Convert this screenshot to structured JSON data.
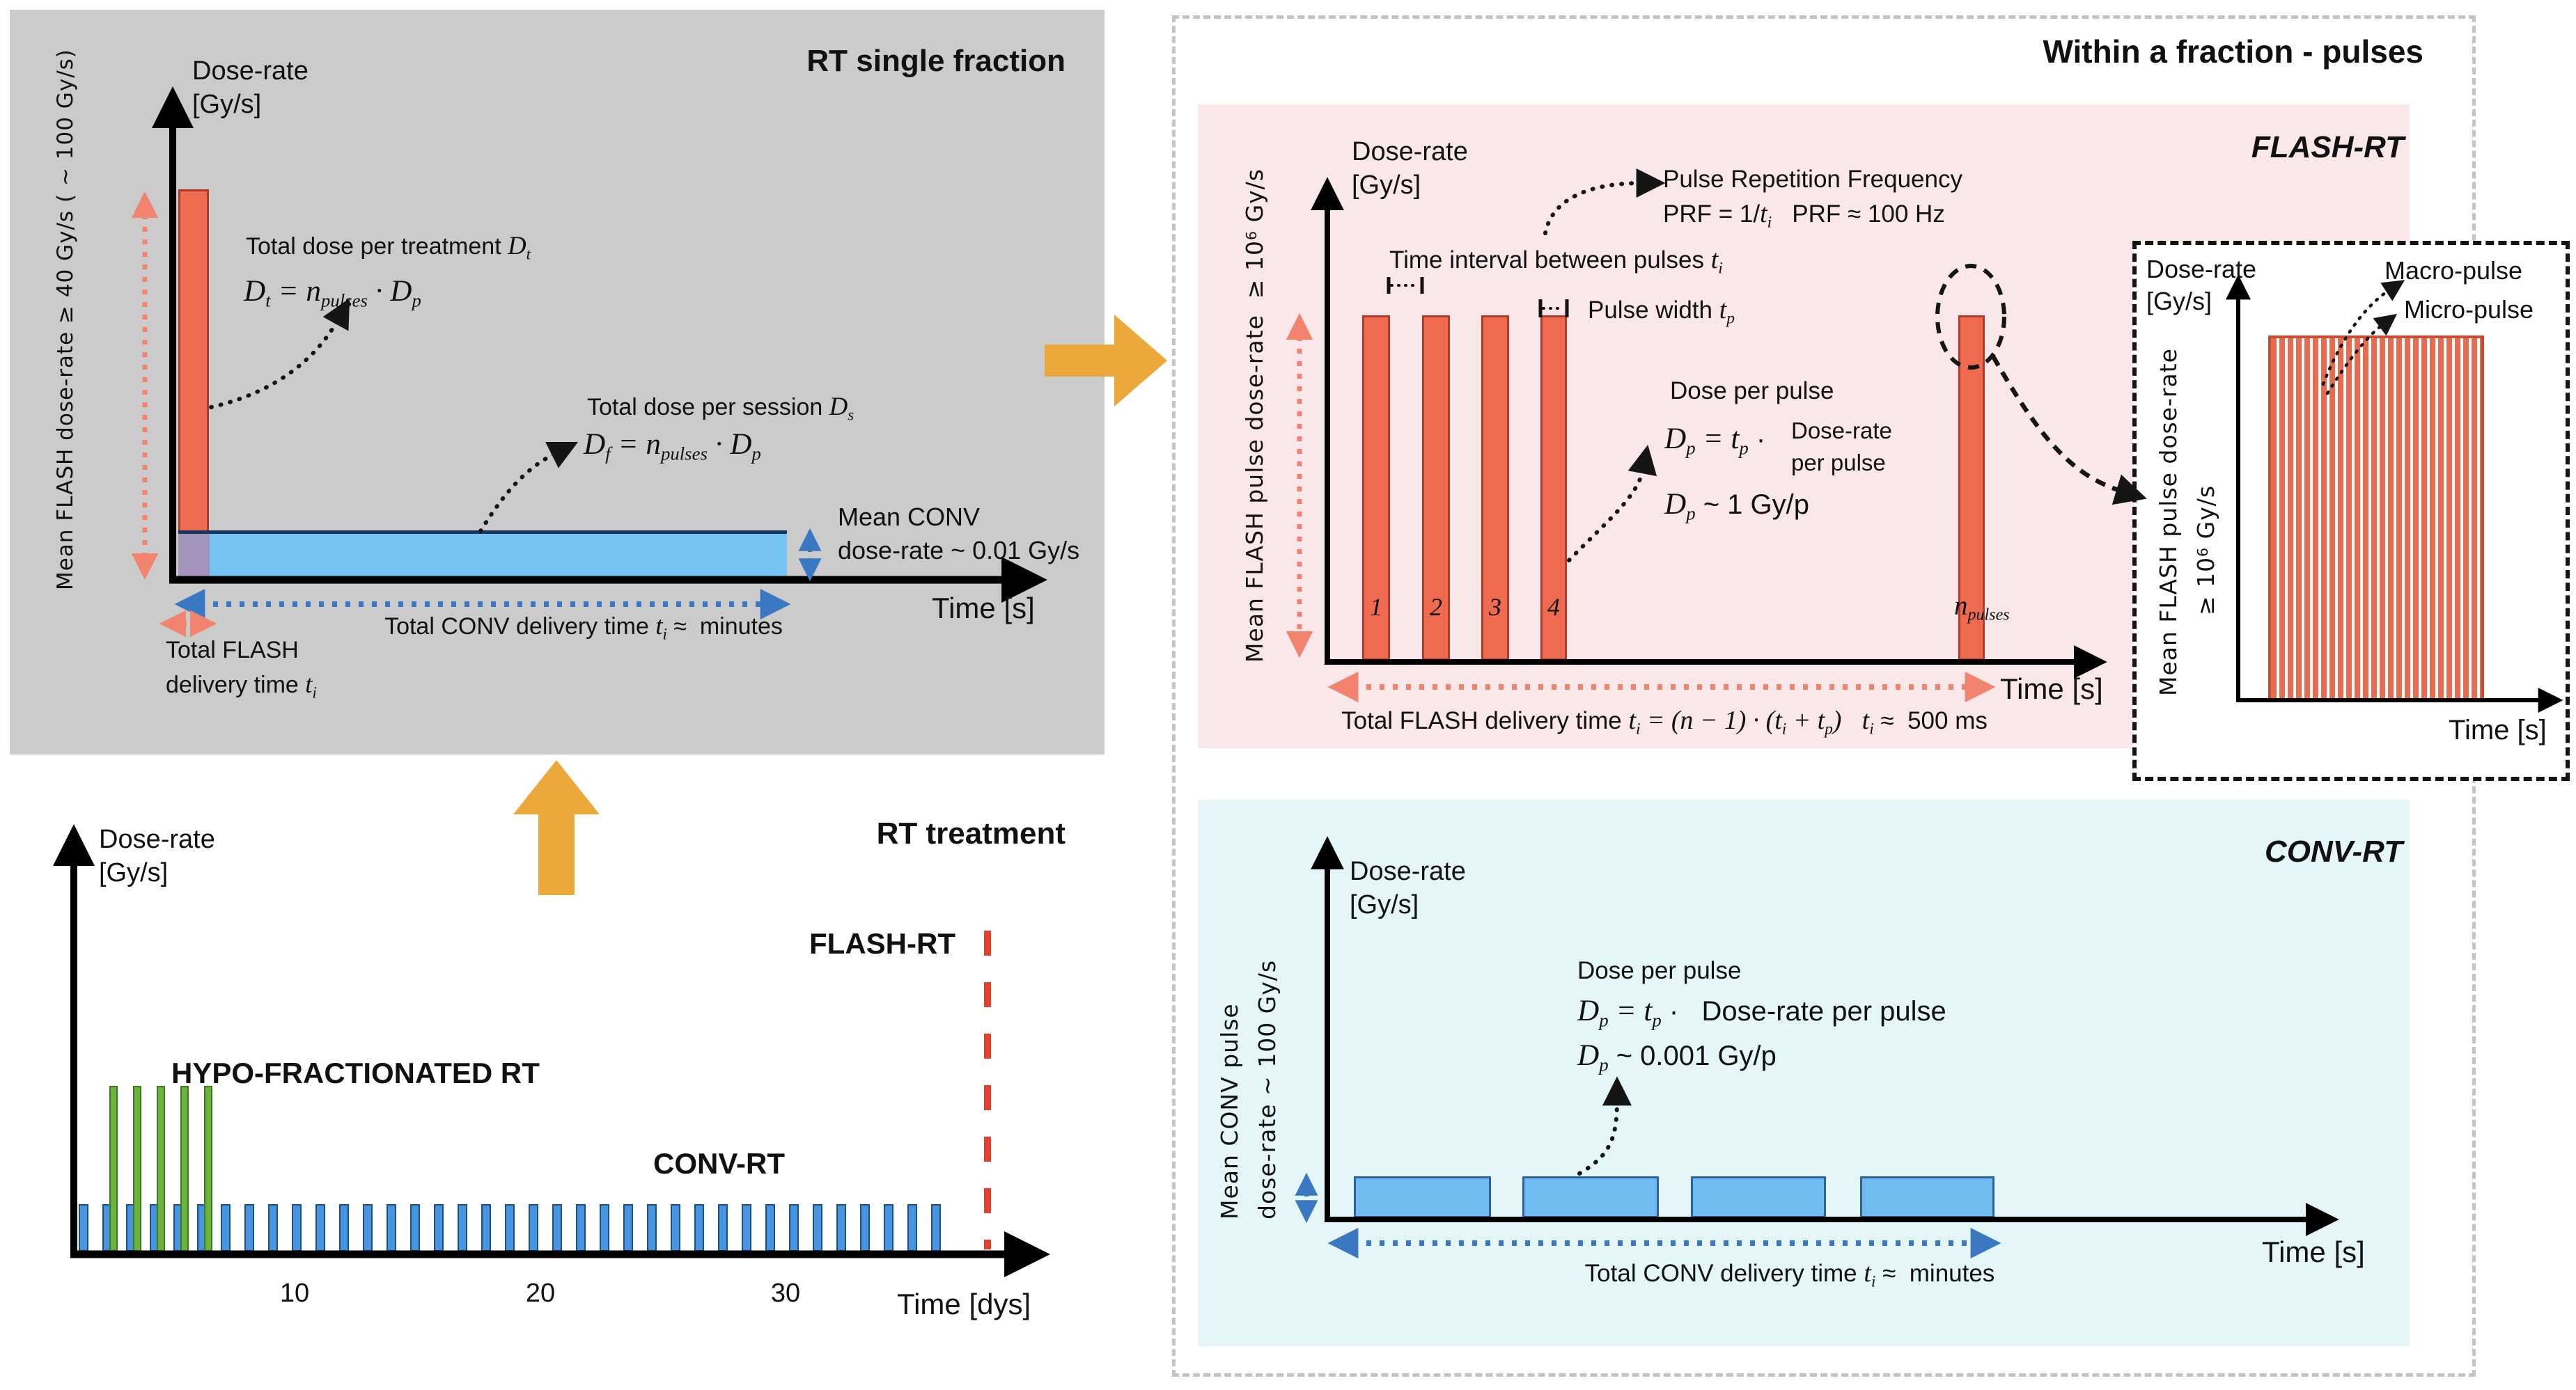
{
  "colors": {
    "panel_gray": "#CBCBCB",
    "panel_pink": "#FAE7EA",
    "panel_cyan": "#E4F6F7",
    "flash_red_fill": "#EE6B50",
    "flash_red_border": "#B23B28",
    "conv_blue_fill": "#70BCF1",
    "conv_blue_border": "#2A62A0",
    "treatment_blue": "#4795DE",
    "hypo_green": "#6CB33E",
    "orange_arrow": "#EBA93C",
    "salmon_arrow": "#F2836F",
    "blue_arrow": "#3B78C2",
    "flash_dashed_red": "#E5402E",
    "navy_border": "#17375E",
    "overlap_purple": "#A494BD"
  },
  "schematic": {
    "conv_daily_bar_count": 37,
    "hypo_bar_count": 5,
    "flash_pulse_count": 4,
    "conv_pulse_count": 4
  },
  "single_fraction": {
    "title": "RT single fraction",
    "y_label": "Dose-rate",
    "y_unit": "[Gy/s]",
    "x_label": "Time [s]",
    "y_annotation": "Mean FLASH dose-rate ≥ 40 Gy/s ( ~ 100 Gy/s)",
    "treatment_title": "Total dose per treatment {{D_{t}}}",
    "treatment_eq": "{{D_{t} = n_{pulses} · D_{p}}}",
    "session_title": "Total dose per session {{D_{s}}}",
    "session_eq": "{{D_{f} = n_{pulses} · D_{p}}}",
    "conv_rate_1": "Mean CONV",
    "conv_rate_2": "dose-rate ~ 0.01 Gy/s",
    "conv_time": "Total CONV delivery time {{t_{i}}} ≈  minutes",
    "flash_time_1": "Total FLASH",
    "flash_time_2": "delivery time {{t_{i}}}"
  },
  "rt_treatment": {
    "title": "RT treatment",
    "y_label": "Dose-rate",
    "y_unit": "[Gy/s]",
    "x_label": "Time [dys]",
    "flash_label": "FLASH-RT",
    "hypo_label": "HYPO-FRACTIONATED RT",
    "conv_label": "CONV-RT",
    "ticks": [
      "10",
      "20",
      "30"
    ]
  },
  "within_fraction": {
    "title": "Within a fraction - pulses",
    "flash": {
      "panel_label": "FLASH-RT",
      "y_label": "Dose-rate",
      "y_unit": "[Gy/s]",
      "x_label": "Time [s]",
      "y_annotation": "Mean FLASH pulse dose-rate  ≥ 10^{6} Gy/s",
      "prf_title": "Pulse Repetition Frequency",
      "prf_eq": "PRF = 1/{{t_{i}}}   PRF ≈ 100 Hz",
      "interval_label": "Time interval between pulses {{t_{i}}}",
      "width_label": "Pulse width {{t_{p}}}",
      "dpp_title": "Dose per pulse",
      "dpp_eq": "{{D_{p} = t_{p}}} ·",
      "dpp_rhs_1": "Dose-rate",
      "dpp_rhs_2": "per pulse",
      "dpp_value": "{{D_{p}}} ~ 1 Gy/p",
      "pulse_numbers": [
        "1",
        "2",
        "3",
        "4"
      ],
      "n_label": "{{n_{pulses}}}",
      "total_time": "Total FLASH delivery time {{t_{i} = (n − 1) · (t_{i} + t_{p})}}   {{t_{i}}} ≈  500 ms"
    },
    "inset": {
      "y_label": "Dose-rate",
      "y_unit": "[Gy/s]",
      "x_label": "Time [s]",
      "macro_label": "Macro-pulse",
      "micro_label": "Micro-pulse",
      "y_annotation_1": "Mean FLASH pulse dose-rate",
      "y_annotation_2": "≥ 10^{6} Gy/s"
    },
    "conv": {
      "panel_label": "CONV-RT",
      "y_label": "Dose-rate",
      "y_unit": "[Gy/s]",
      "x_label": "Time [s]",
      "y_annotation_1": "Mean CONV pulse",
      "y_annotation_2": "dose-rate ~ 100 Gy/s",
      "dpp_title": "Dose per pulse",
      "dpp_eq": "{{D_{p} = t_{p}}} ·   Dose-rate per pulse",
      "dpp_value": "{{D_{p}}} ~ 0.001 Gy/p",
      "total_time": "Total CONV delivery time {{t_{i}}} ≈  minutes"
    }
  }
}
